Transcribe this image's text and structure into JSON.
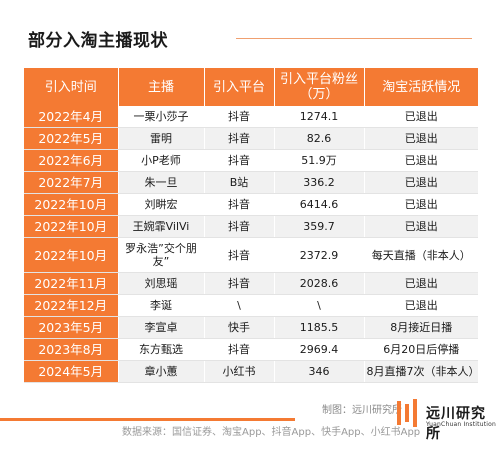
{
  "title": "部分入淘主播现状",
  "headers": [
    "引入时间",
    "主播",
    "引入平台",
    "引入平台粉丝\n（万）",
    "淘宝活跃情况"
  ],
  "rows": [
    {
      "date": "2022年4月",
      "anchor": "一栗小莎子",
      "platform": "抖音",
      "fans": "1274.1",
      "status": "已退出"
    },
    {
      "date": "2022年5月",
      "anchor": "雷明",
      "platform": "抖音",
      "fans": "82.6",
      "status": "已退出"
    },
    {
      "date": "2022年6月",
      "anchor": "小P老师",
      "platform": "抖音",
      "fans": "51.9万",
      "status": "已退出"
    },
    {
      "date": "2022年7月",
      "anchor": "朱一旦",
      "platform": "B站",
      "fans": "336.2",
      "status": "已退出"
    },
    {
      "date": "2022年10月",
      "anchor": "刘畊宏",
      "platform": "抖音",
      "fans": "6414.6",
      "status": "已退出"
    },
    {
      "date": "2022年10月",
      "anchor": "王婉霏VilVi",
      "platform": "抖音",
      "fans": "359.7",
      "status": "已退出"
    },
    {
      "date": "2022年10月",
      "anchor": "罗永浩”交个朋友”",
      "platform": "抖音",
      "fans": "2372.9",
      "status": "每天直播（非本人）"
    },
    {
      "date": "2022年11月",
      "anchor": "刘思瑶",
      "platform": "抖音",
      "fans": "2028.6",
      "status": "已退出"
    },
    {
      "date": "2022年12月",
      "anchor": "李诞",
      "platform": "\\",
      "fans": "\\",
      "status": "已退出"
    },
    {
      "date": "2023年5月",
      "anchor": "李宣卓",
      "platform": "快手",
      "fans": "1185.5",
      "status": "8月接近日播"
    },
    {
      "date": "2023年8月",
      "anchor": "东方甄选",
      "platform": "抖音",
      "fans": "2969.4",
      "status": "6月20日后停播"
    },
    {
      "date": "2024年5月",
      "anchor": "章小蕙",
      "platform": "小红书",
      "fans": "346",
      "status": "8月直播7次（非本人）"
    }
  ],
  "credit": "制图：远川研究所",
  "source": "数据来源：国信证券、淘宝App、抖音App、快手App、小红书App",
  "logo": {
    "name": "远川研究所",
    "sub": "YuanChuan Institution",
    "color": "#f47a33"
  },
  "colors": {
    "accent": "#f47a33",
    "zebra": "#f1f1f1"
  }
}
